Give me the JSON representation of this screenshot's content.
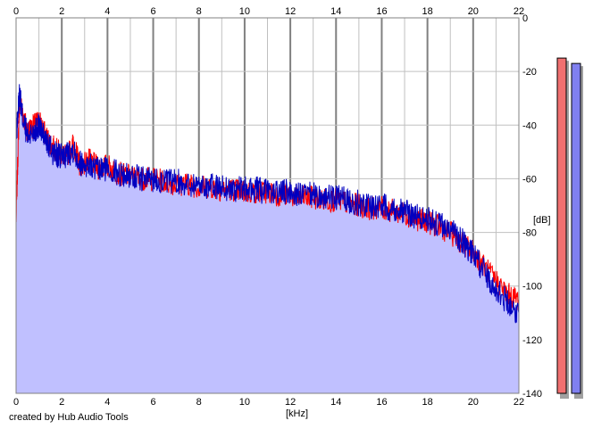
{
  "chart_data": {
    "type": "area",
    "title": "",
    "xlabel": "[kHz]",
    "ylabel": "[dB]",
    "xlim": [
      0,
      22
    ],
    "ylim": [
      -140,
      0
    ],
    "x_ticks": [
      "0",
      "2",
      "4",
      "6",
      "8",
      "10",
      "12",
      "14",
      "16",
      "18",
      "20",
      "22"
    ],
    "y_ticks": [
      "0",
      "-20",
      "-40",
      "-60",
      "-80",
      "-100",
      "-120",
      "-140"
    ],
    "grid": true,
    "colors": {
      "red_line": "#ff0000",
      "blue_line": "#0000c0",
      "fill": "#c0c0ff",
      "grid": "#c0c0c0",
      "major_grid": "#808080"
    },
    "series": [
      {
        "color": "#ff0000",
        "x": [
          0,
          0.15,
          0.3,
          0.5,
          0.8,
          1.0,
          1.3,
          1.6,
          1.9,
          2.2,
          2.5,
          2.8,
          3.2,
          3.6,
          4.0,
          4.5,
          5.0,
          5.5,
          6.0,
          6.5,
          7.0,
          7.5,
          8.0,
          8.5,
          9.0,
          9.5,
          10.0,
          10.5,
          11.0,
          11.5,
          12.0,
          12.5,
          13.0,
          13.5,
          14.0,
          14.5,
          15.0,
          15.5,
          16.0,
          16.5,
          17.0,
          17.5,
          18.0,
          18.5,
          19.0,
          19.5,
          20.0,
          20.5,
          21.0,
          21.5,
          22.0
        ],
        "values": [
          -76,
          -30,
          -36,
          -42,
          -40,
          -38,
          -44,
          -48,
          -50,
          -52,
          -47,
          -55,
          -53,
          -56,
          -55,
          -58,
          -59,
          -60,
          -60,
          -61,
          -62,
          -62,
          -63,
          -63,
          -64,
          -64,
          -65,
          -65,
          -65,
          -66,
          -66,
          -67,
          -67,
          -68,
          -68,
          -69,
          -70,
          -71,
          -71,
          -72,
          -73,
          -75,
          -76,
          -78,
          -80,
          -84,
          -87,
          -93,
          -98,
          -103,
          -105
        ]
      },
      {
        "color": "#0000c0",
        "x": [
          0,
          0.15,
          0.3,
          0.5,
          0.8,
          1.0,
          1.3,
          1.6,
          1.9,
          2.2,
          2.5,
          2.8,
          3.2,
          3.6,
          4.0,
          4.5,
          5.0,
          5.5,
          6.0,
          6.5,
          7.0,
          7.5,
          8.0,
          8.5,
          9.0,
          9.5,
          10.0,
          10.5,
          11.0,
          11.5,
          12.0,
          12.5,
          13.0,
          13.5,
          14.0,
          14.5,
          15.0,
          15.5,
          16.0,
          16.5,
          17.0,
          17.5,
          18.0,
          18.5,
          19.0,
          19.5,
          20.0,
          20.5,
          21.0,
          21.5,
          22.0
        ],
        "values": [
          -45,
          -28,
          -38,
          -44,
          -42,
          -40,
          -46,
          -50,
          -52,
          -51,
          -49,
          -54,
          -55,
          -57,
          -56,
          -58,
          -59,
          -60,
          -60,
          -61,
          -61,
          -62,
          -62,
          -63,
          -63,
          -64,
          -64,
          -64,
          -65,
          -65,
          -65,
          -66,
          -66,
          -67,
          -67,
          -68,
          -69,
          -70,
          -70,
          -71,
          -72,
          -74,
          -75,
          -77,
          -79,
          -83,
          -88,
          -95,
          -101,
          -106,
          -110
        ]
      }
    ],
    "level_meters": [
      {
        "color": "#f07070",
        "value_db": -15
      },
      {
        "color": "#8080f0",
        "value_db": -17
      }
    ]
  },
  "footer": {
    "credit": "created by Hub Audio Tools"
  }
}
